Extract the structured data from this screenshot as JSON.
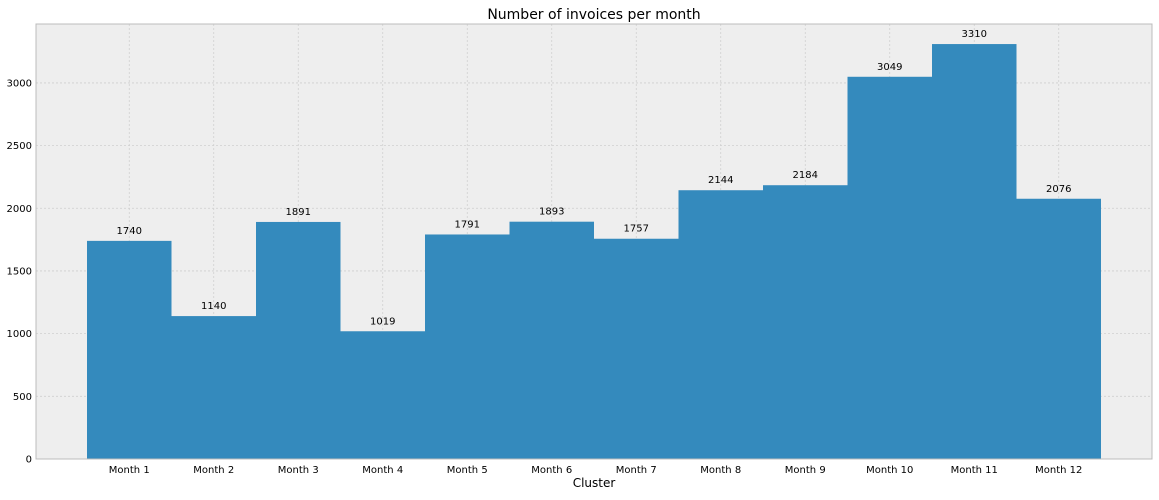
{
  "chart_data": {
    "type": "bar",
    "title": "Number of invoices per month",
    "xlabel": "Cluster",
    "ylabel": "",
    "categories": [
      "Month 1",
      "Month 2",
      "Month 3",
      "Month 4",
      "Month 5",
      "Month 6",
      "Month 7",
      "Month 8",
      "Month 9",
      "Month 10",
      "Month 11",
      "Month 12"
    ],
    "values": [
      1740,
      1140,
      1891,
      1019,
      1791,
      1893,
      1757,
      2144,
      2184,
      3049,
      3310,
      2076
    ],
    "data_labels": [
      "1740",
      "1140",
      "1891",
      "1019",
      "1791",
      "1893",
      "1757",
      "2144",
      "2184",
      "3049",
      "3310",
      "2076"
    ],
    "ylim": [
      0,
      3470
    ],
    "yticks": [
      0,
      500,
      1000,
      1500,
      2000,
      2500,
      3000
    ],
    "ytick_labels": [
      "0",
      "500",
      "1000",
      "1500",
      "2000",
      "2500",
      "3000"
    ],
    "grid": true,
    "legend": "none",
    "colors": {
      "bar": "#348abd",
      "plot_background": "#eeeeee",
      "grid": "#cfcfcf",
      "axes_edge": "#bcbcbc",
      "text": "#000000"
    }
  }
}
